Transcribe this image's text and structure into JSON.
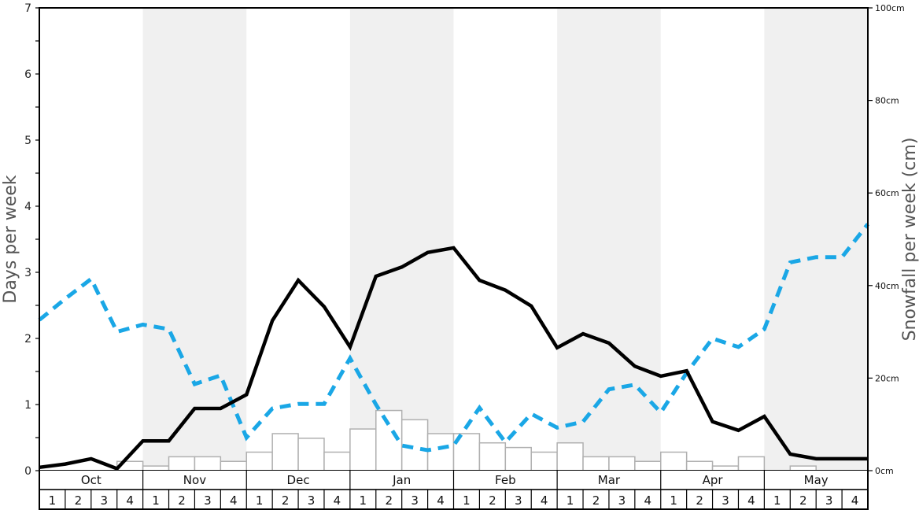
{
  "chart_data": {
    "type": "line",
    "title": "",
    "ylabel": "Days per week",
    "ylabel_right": "Snowfall per week (cm)",
    "ylim": [
      0,
      7
    ],
    "ylim_right": [
      0,
      100
    ],
    "yticks": [
      "0",
      "1",
      "2",
      "3",
      "4",
      "5",
      "6",
      "7"
    ],
    "yticks_right": [
      "0cm",
      "20cm",
      "40cm",
      "60cm",
      "80cm",
      "100cm"
    ],
    "months": [
      "Oct",
      "Nov",
      "Dec",
      "Jan",
      "Feb",
      "Mar",
      "Apr",
      "May"
    ],
    "weeks": [
      "1",
      "2",
      "3",
      "4"
    ],
    "x_points": 33,
    "series": [
      {
        "name": "Days per week (solid black)",
        "style": "solid",
        "color": "#000000",
        "axis": "left",
        "values": [
          0.05,
          0.1,
          0.18,
          0.03,
          0.45,
          0.45,
          0.94,
          0.94,
          1.15,
          2.27,
          2.88,
          2.48,
          1.87,
          2.94,
          3.08,
          3.3,
          3.37,
          2.88,
          2.73,
          2.49,
          1.86,
          2.07,
          1.93,
          1.58,
          1.43,
          1.51,
          0.74,
          0.61,
          0.82,
          0.25,
          0.18,
          0.18,
          0.18
        ]
      },
      {
        "name": "Days per week (dashed blue)",
        "style": "dashed",
        "color": "#1aa7e6",
        "axis": "left",
        "values": [
          2.28,
          2.6,
          2.9,
          2.1,
          2.21,
          2.14,
          1.31,
          1.44,
          0.5,
          0.94,
          1.01,
          1.01,
          1.7,
          1.0,
          0.38,
          0.31,
          0.38,
          0.95,
          0.43,
          0.86,
          0.65,
          0.74,
          1.23,
          1.3,
          0.88,
          1.48,
          2.0,
          1.87,
          2.14,
          3.15,
          3.23,
          3.23,
          3.73
        ]
      },
      {
        "name": "Snowfall per week (cm)",
        "style": "bar",
        "color": "#ffffff",
        "edge_color": "#b0b0b0",
        "axis": "right",
        "values": [
          0,
          0,
          0,
          2,
          1,
          3,
          3,
          2,
          4,
          8,
          7,
          4,
          9,
          13,
          11,
          8,
          8,
          6,
          5,
          4,
          6,
          3,
          3,
          2,
          4,
          2,
          1,
          3,
          0,
          1,
          0,
          0
        ]
      }
    ],
    "shaded_months": [
      "Nov",
      "Jan",
      "Mar",
      "May"
    ],
    "shade_color": "#f0f0f0",
    "grid": false,
    "legend": null
  }
}
